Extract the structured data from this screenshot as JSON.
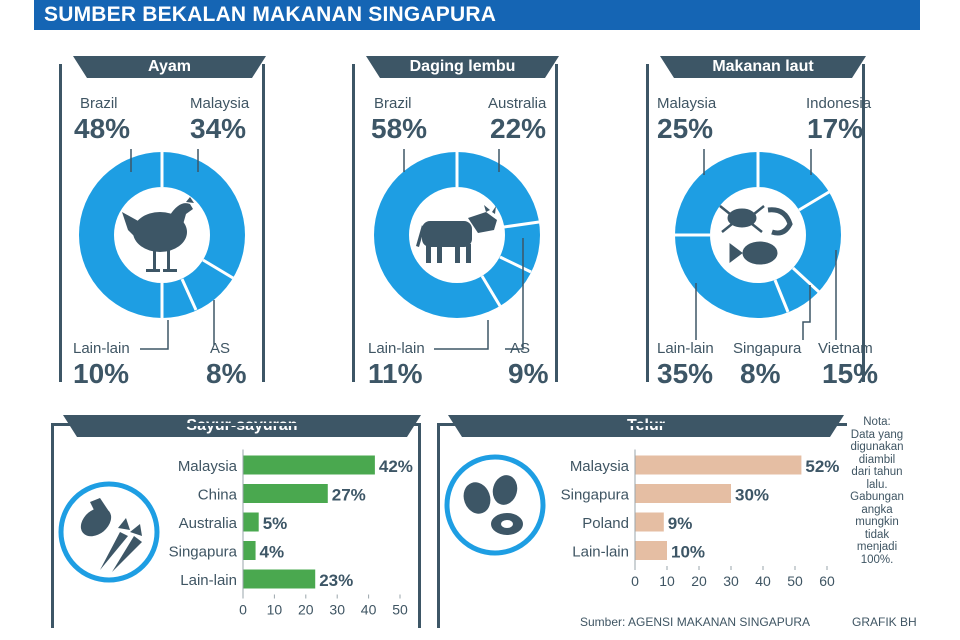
{
  "title": "SUMBER BEKALAN MAKANAN SINGAPURA",
  "colors": {
    "donut": "#1e9ee3",
    "sayur_bar": "#4aa84f",
    "telur_bar": "#e5bea3",
    "header": "#3d5666",
    "banner": "#1565b4"
  },
  "donuts": [
    {
      "title": "Ayam",
      "icon": "chicken-icon",
      "segments": [
        {
          "label": "Brazil",
          "pct": "48%"
        },
        {
          "label": "Malaysia",
          "pct": "34%"
        },
        {
          "label": "Lain-lain",
          "pct": "10%"
        },
        {
          "label": "AS",
          "pct": "8%"
        }
      ]
    },
    {
      "title": "Daging lembu",
      "icon": "cow-icon",
      "segments": [
        {
          "label": "Brazil",
          "pct": "58%"
        },
        {
          "label": "Australia",
          "pct": "22%"
        },
        {
          "label": "Lain-lain",
          "pct": "11%"
        },
        {
          "label": "AS",
          "pct": "9%"
        }
      ]
    },
    {
      "title": "Makanan laut",
      "icon": "seafood-icon",
      "segments": [
        {
          "label": "Malaysia",
          "pct": "25%"
        },
        {
          "label": "Indonesia",
          "pct": "17%"
        },
        {
          "label": "Lain-lain",
          "pct": "35%"
        },
        {
          "label": "Singapura",
          "pct": "8%"
        },
        {
          "label": "Vietnam",
          "pct": "15%"
        }
      ]
    }
  ],
  "chart_data": [
    {
      "type": "pie",
      "title": "Ayam",
      "categories": [
        "Brazil",
        "Malaysia",
        "AS",
        "Lain-lain"
      ],
      "values": [
        48,
        34,
        8,
        10
      ]
    },
    {
      "type": "pie",
      "title": "Daging lembu",
      "categories": [
        "Brazil",
        "Australia",
        "AS",
        "Lain-lain"
      ],
      "values": [
        58,
        22,
        9,
        11
      ]
    },
    {
      "type": "pie",
      "title": "Makanan laut",
      "categories": [
        "Malaysia",
        "Indonesia",
        "Vietnam",
        "Singapura",
        "Lain-lain"
      ],
      "values": [
        25,
        17,
        15,
        8,
        35
      ]
    },
    {
      "type": "bar",
      "orientation": "horizontal",
      "title": "Sayur-sayuran",
      "categories": [
        "Malaysia",
        "China",
        "Australia",
        "Singapura",
        "Lain-lain"
      ],
      "values": [
        42,
        27,
        5,
        4,
        23
      ],
      "labels": [
        "42%",
        "27%",
        "5%",
        "4%",
        "23%"
      ],
      "xlim": [
        0,
        50
      ],
      "ticks": [
        "0",
        "10",
        "20",
        "30",
        "40",
        "50"
      ]
    },
    {
      "type": "bar",
      "orientation": "horizontal",
      "title": "Telur",
      "categories": [
        "Malaysia",
        "Singapura",
        "Poland",
        "Lain-lain"
      ],
      "values": [
        52,
        30,
        9,
        10
      ],
      "labels": [
        "52%",
        "30%",
        "9%",
        "10%"
      ],
      "xlim": [
        0,
        60
      ],
      "ticks": [
        "0",
        "10",
        "20",
        "30",
        "40",
        "50",
        "60"
      ]
    }
  ],
  "note": {
    "heading": "Nota:",
    "lines": [
      "Data yang",
      "digunakan",
      "diambil",
      "dari tahun",
      "lalu.",
      "Gabungan",
      "angka",
      "mungkin",
      "tidak",
      "menjadi",
      "100%."
    ]
  },
  "source": "Sumber: AGENSI MAKANAN SINGAPURA",
  "credit": "GRAFIK BH"
}
